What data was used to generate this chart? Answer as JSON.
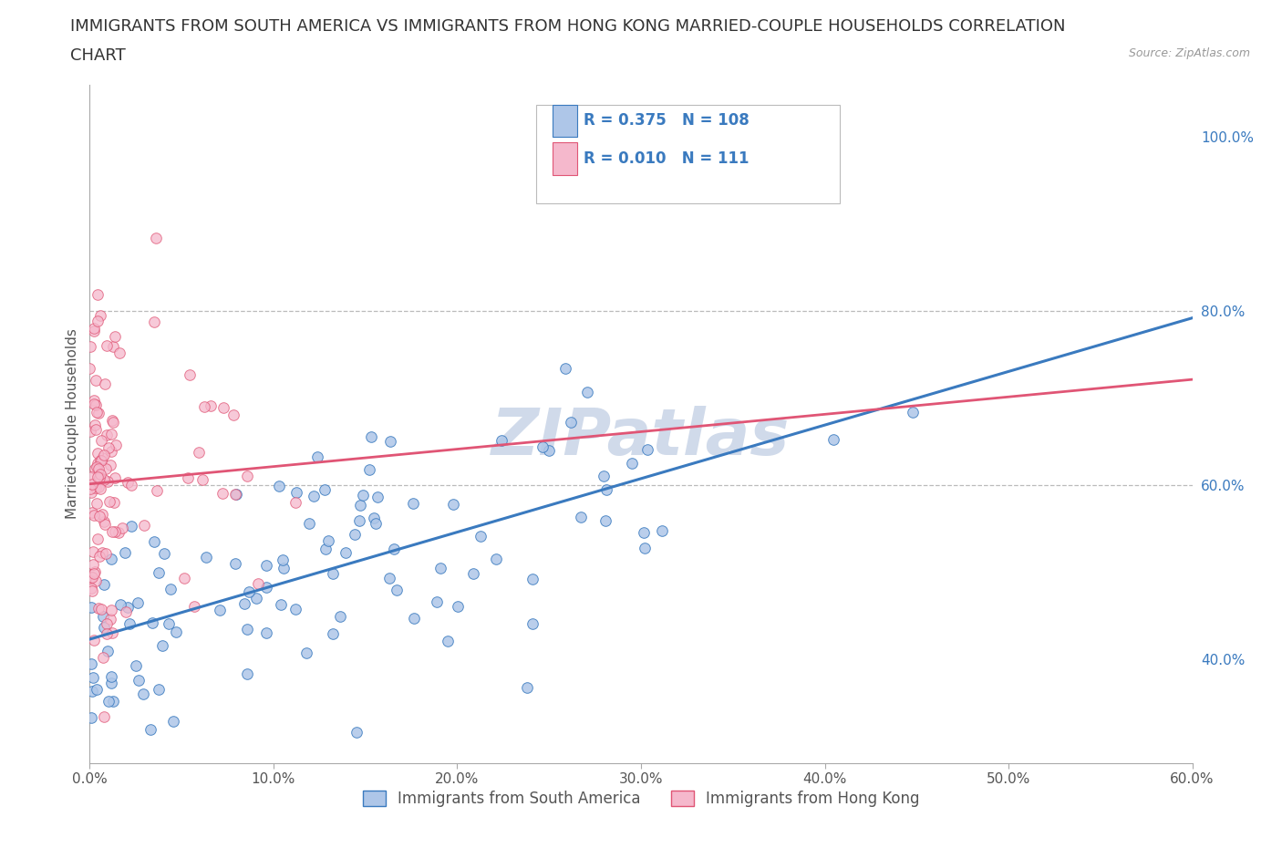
{
  "title_line1": "IMMIGRANTS FROM SOUTH AMERICA VS IMMIGRANTS FROM HONG KONG MARRIED-COUPLE HOUSEHOLDS CORRELATION",
  "title_line2": "CHART",
  "source_text": "Source: ZipAtlas.com",
  "ylabel": "Married-couple Households",
  "legend_label1": "Immigrants from South America",
  "legend_label2": "Immigrants from Hong Kong",
  "R1": 0.375,
  "N1": 108,
  "R2": 0.01,
  "N2": 111,
  "color1": "#aec6e8",
  "color2": "#f5b8cc",
  "line_color1": "#3a7abf",
  "line_color2": "#e05575",
  "watermark": "ZIPatlas",
  "xlim": [
    0.0,
    0.6
  ],
  "ylim": [
    0.28,
    1.06
  ],
  "xticklabels": [
    "0.0%",
    "10.0%",
    "20.0%",
    "30.0%",
    "40.0%",
    "50.0%",
    "60.0%"
  ],
  "yticklabels": [
    "40.0%",
    "60.0%",
    "80.0%",
    "100.0%"
  ],
  "ytick_positions": [
    0.4,
    0.6,
    0.8,
    1.0
  ],
  "hline_positions": [
    0.6,
    0.8
  ],
  "title_fontsize": 13,
  "source_fontsize": 9,
  "axis_label_fontsize": 11,
  "tick_fontsize": 11,
  "legend_fontsize": 12,
  "watermark_fontsize": 52,
  "watermark_color": "#d0daea",
  "background_color": "#ffffff",
  "grid_color": "#bbbbbb"
}
